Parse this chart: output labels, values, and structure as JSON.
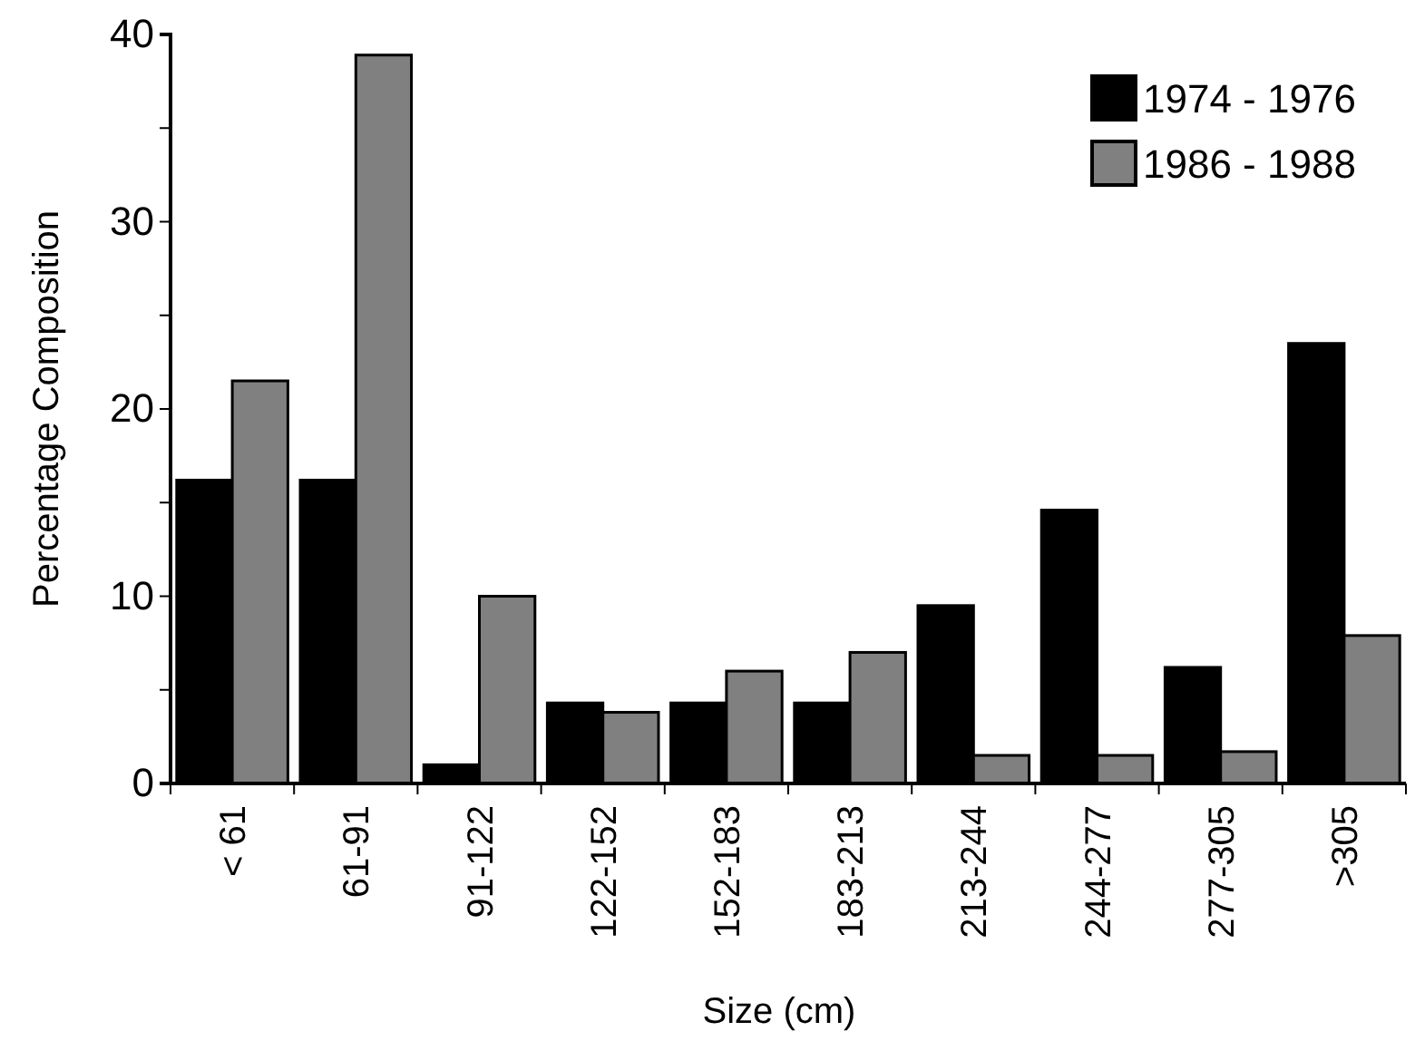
{
  "chart_data": {
    "type": "bar",
    "xlabel": "Size (cm)",
    "ylabel": "Percentage Composition",
    "categories": [
      "< 61",
      "61-91",
      "91-122",
      "122-152",
      "152-183",
      "183-213",
      "213-244",
      "244-277",
      "277-305",
      ">305"
    ],
    "series": [
      {
        "name": "1974 - 1976",
        "color": "#000000",
        "values": [
          16.2,
          16.2,
          1.0,
          4.3,
          4.3,
          4.3,
          9.5,
          14.6,
          6.2,
          23.5
        ]
      },
      {
        "name": "1986 - 1988",
        "color": "#808080",
        "values": [
          21.5,
          38.9,
          10.0,
          3.8,
          6.0,
          7.0,
          1.5,
          1.5,
          1.7,
          7.9
        ]
      }
    ],
    "ylim": [
      0,
      40
    ],
    "yticks": [
      0,
      {
        "value": 5,
        "label": null
      },
      10,
      {
        "value": 15,
        "label": null
      },
      20,
      {
        "value": 25,
        "label": null
      },
      30,
      {
        "value": 35,
        "label": null
      },
      40
    ],
    "grid": false,
    "legend": "top right"
  }
}
